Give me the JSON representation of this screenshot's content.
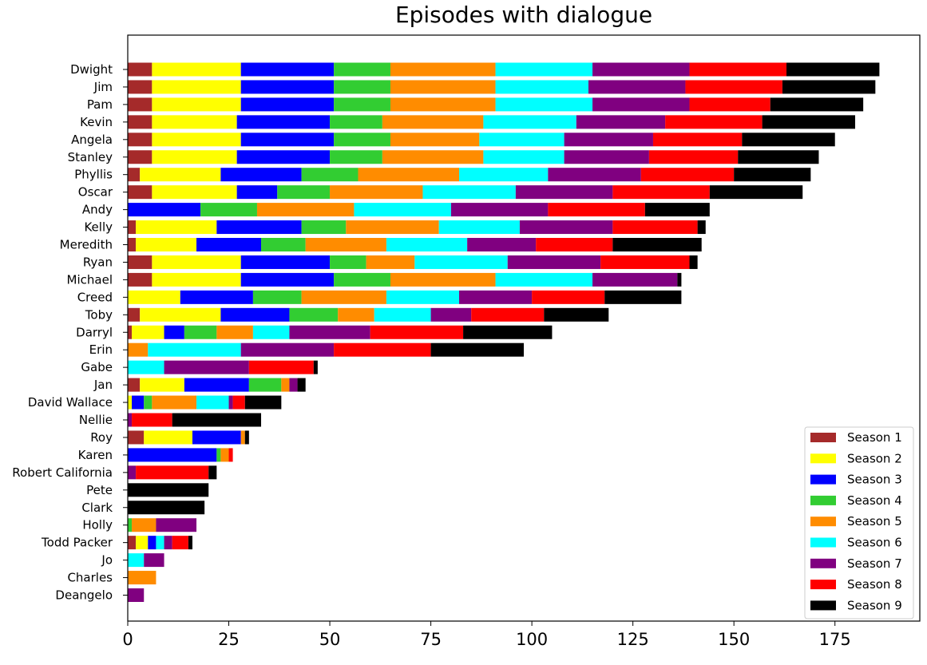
{
  "chart_data": {
    "type": "bar",
    "orientation": "horizontal",
    "stacked": true,
    "title": "Episodes with dialogue",
    "xlabel": "",
    "ylabel": "",
    "xlim": [
      0,
      196
    ],
    "xticks": [
      0,
      25,
      50,
      75,
      100,
      125,
      150,
      175
    ],
    "legend_position": "bottom-right",
    "grid": false,
    "categories": [
      "Dwight",
      "Jim",
      "Pam",
      "Kevin",
      "Angela",
      "Stanley",
      "Phyllis",
      "Oscar",
      "Andy",
      "Kelly",
      "Meredith",
      "Ryan",
      "Michael",
      "Creed",
      "Toby",
      "Darryl",
      "Erin",
      "Gabe",
      "Jan",
      "David Wallace",
      "Nellie",
      "Roy",
      "Karen",
      "Robert California",
      "Pete",
      "Clark",
      "Holly",
      "Todd Packer",
      "Jo",
      "Charles",
      "Deangelo"
    ],
    "series": [
      {
        "name": "Season 1",
        "color": "#a52a2a",
        "values": [
          6,
          6,
          6,
          6,
          6,
          6,
          3,
          6,
          0,
          2,
          2,
          6,
          6,
          0,
          3,
          1,
          0,
          0,
          3,
          0,
          0,
          4,
          0,
          0,
          0,
          0,
          0,
          2,
          0,
          0,
          0
        ]
      },
      {
        "name": "Season 2",
        "color": "#ffff00",
        "values": [
          22,
          22,
          22,
          21,
          22,
          21,
          20,
          21,
          0,
          20,
          15,
          22,
          22,
          13,
          20,
          8,
          0,
          0,
          11,
          1,
          0,
          12,
          0,
          0,
          0,
          0,
          0,
          3,
          0,
          0,
          0
        ]
      },
      {
        "name": "Season 3",
        "color": "#0000ff",
        "values": [
          23,
          23,
          23,
          23,
          23,
          23,
          20,
          10,
          18,
          21,
          16,
          22,
          23,
          18,
          17,
          5,
          0,
          0,
          16,
          3,
          0,
          12,
          22,
          0,
          0,
          0,
          0,
          2,
          0,
          0,
          0
        ]
      },
      {
        "name": "Season 4",
        "color": "#32cd32",
        "values": [
          14,
          14,
          14,
          13,
          14,
          13,
          14,
          13,
          14,
          11,
          11,
          9,
          14,
          12,
          12,
          8,
          0,
          0,
          8,
          2,
          0,
          0,
          1,
          0,
          0,
          0,
          1,
          0,
          0,
          0,
          0
        ]
      },
      {
        "name": "Season 5",
        "color": "#ff8c00",
        "values": [
          26,
          26,
          26,
          25,
          22,
          25,
          25,
          23,
          24,
          23,
          20,
          12,
          26,
          21,
          9,
          9,
          5,
          0,
          2,
          11,
          0,
          1,
          2,
          0,
          0,
          0,
          6,
          0,
          0,
          7,
          0
        ]
      },
      {
        "name": "Season 6",
        "color": "#00ffff",
        "values": [
          24,
          23,
          24,
          23,
          21,
          20,
          22,
          23,
          24,
          20,
          20,
          23,
          24,
          18,
          14,
          9,
          23,
          9,
          0,
          8,
          0,
          0,
          0,
          0,
          0,
          0,
          0,
          2,
          4,
          0,
          0
        ]
      },
      {
        "name": "Season 7",
        "color": "#800080",
        "values": [
          24,
          24,
          24,
          22,
          22,
          21,
          23,
          24,
          24,
          23,
          17,
          23,
          21,
          18,
          10,
          20,
          23,
          21,
          2,
          1,
          1,
          0,
          0,
          2,
          0,
          0,
          10,
          2,
          5,
          0,
          4
        ]
      },
      {
        "name": "Season 8",
        "color": "#ff0000",
        "values": [
          24,
          24,
          20,
          24,
          22,
          22,
          23,
          24,
          24,
          21,
          19,
          22,
          0,
          18,
          18,
          23,
          24,
          16,
          0,
          3,
          10,
          0,
          1,
          18,
          0,
          0,
          0,
          4,
          0,
          0,
          0
        ]
      },
      {
        "name": "Season 9",
        "color": "#000000",
        "values": [
          23,
          23,
          23,
          23,
          23,
          20,
          19,
          23,
          16,
          2,
          22,
          2,
          1,
          19,
          16,
          22,
          23,
          1,
          2,
          9,
          22,
          1,
          0,
          2,
          20,
          19,
          0,
          1,
          0,
          0,
          0
        ]
      }
    ]
  }
}
